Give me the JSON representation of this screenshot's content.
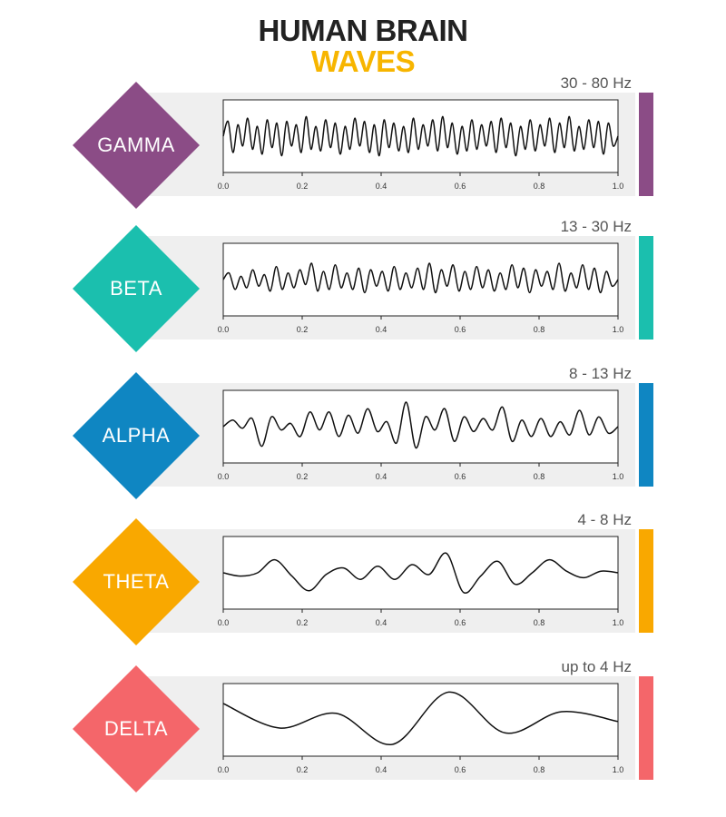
{
  "header": {
    "title": "HUMAN BRAIN",
    "subtitle": "WAVES",
    "subtitle_color": "#f7b500"
  },
  "x_tick_labels": [
    "0.0",
    "0.2",
    "0.4",
    "0.6",
    "0.8",
    "1.0"
  ],
  "bands": [
    {
      "name": "GAMMA",
      "frequency": "30 - 80 Hz",
      "color": "#8b4c86"
    },
    {
      "name": "BETA",
      "frequency": "13 - 30 Hz",
      "color": "#1bbfae"
    },
    {
      "name": "ALPHA",
      "frequency": "8 - 13 Hz",
      "color": "#0f86c2"
    },
    {
      "name": "THETA",
      "frequency": "4 - 8 Hz",
      "color": "#f9a800"
    },
    {
      "name": "DELTA",
      "frequency": "up to 4  Hz",
      "color": "#f4666a"
    }
  ],
  "chart_data": [
    {
      "type": "line",
      "title": "GAMMA",
      "xlim": [
        0.0,
        1.0
      ],
      "x_ticks": [
        0.0,
        0.2,
        0.4,
        0.6,
        0.8,
        1.0
      ],
      "series": [
        {
          "values": [
            0.0,
            0.45,
            -0.5,
            0.35,
            -0.3,
            0.55,
            -0.4,
            0.3,
            -0.55,
            0.5,
            -0.35,
            0.4,
            -0.6,
            0.45,
            -0.3,
            0.35,
            -0.5,
            0.6,
            -0.4,
            0.3,
            -0.45,
            0.5,
            -0.35,
            0.4,
            -0.55,
            0.3,
            -0.4,
            0.55,
            -0.3,
            0.45,
            -0.5,
            0.35,
            -0.6,
            0.5,
            -0.35,
            0.4,
            -0.45,
            0.3,
            -0.5,
            0.55,
            -0.4,
            0.35,
            -0.3,
            0.5,
            -0.45,
            0.6,
            -0.35,
            0.4,
            -0.55,
            0.3,
            -0.45,
            0.5,
            -0.4,
            0.35,
            -0.3,
            0.45,
            -0.5,
            0.55,
            -0.35,
            0.4,
            -0.6,
            0.3,
            -0.4,
            0.5,
            -0.45,
            0.35,
            -0.3,
            0.55,
            -0.5,
            0.4,
            -0.35,
            0.6,
            -0.45,
            0.3,
            -0.4,
            0.5,
            -0.35,
            0.45,
            -0.55,
            0.4,
            -0.3,
            0.0
          ]
        }
      ]
    },
    {
      "type": "line",
      "title": "BETA",
      "xlim": [
        0.0,
        1.0
      ],
      "x_ticks": [
        0.0,
        0.2,
        0.4,
        0.6,
        0.8,
        1.0
      ],
      "series": [
        {
          "values": [
            0.0,
            0.2,
            -0.3,
            0.1,
            -0.25,
            0.3,
            -0.2,
            0.15,
            -0.35,
            0.4,
            -0.3,
            0.2,
            -0.25,
            0.3,
            -0.15,
            0.5,
            -0.35,
            0.25,
            -0.3,
            0.45,
            -0.25,
            0.2,
            -0.3,
            0.35,
            -0.4,
            0.3,
            -0.2,
            0.25,
            -0.35,
            0.4,
            -0.3,
            0.2,
            -0.25,
            0.35,
            -0.3,
            0.5,
            -0.4,
            0.3,
            -0.2,
            0.45,
            -0.35,
            0.25,
            -0.3,
            0.4,
            -0.25,
            0.3,
            -0.35,
            0.2,
            -0.3,
            0.45,
            -0.25,
            0.35,
            -0.4,
            0.3,
            -0.2,
            0.25,
            -0.3,
            0.5,
            -0.35,
            0.2,
            -0.25,
            0.45,
            -0.3,
            0.35,
            -0.4,
            0.25,
            -0.2,
            0.0
          ]
        }
      ]
    },
    {
      "type": "line",
      "title": "ALPHA",
      "xlim": [
        0.0,
        1.0
      ],
      "x_ticks": [
        0.0,
        0.2,
        0.4,
        0.6,
        0.8,
        1.0
      ],
      "series": [
        {
          "values": [
            0.0,
            0.2,
            -0.05,
            0.25,
            -0.6,
            0.3,
            -0.1,
            0.1,
            -0.3,
            0.45,
            -0.1,
            0.45,
            -0.3,
            0.35,
            -0.2,
            0.55,
            -0.15,
            0.15,
            -0.5,
            0.75,
            -0.65,
            0.3,
            -0.1,
            0.55,
            -0.45,
            0.3,
            -0.15,
            0.25,
            -0.1,
            0.6,
            -0.45,
            0.2,
            -0.3,
            0.25,
            -0.3,
            0.15,
            -0.25,
            0.5,
            -0.25,
            0.3,
            -0.2,
            0.0
          ]
        }
      ]
    },
    {
      "type": "line",
      "title": "THETA",
      "xlim": [
        0.0,
        1.0
      ],
      "x_ticks": [
        0.0,
        0.2,
        0.4,
        0.6,
        0.8,
        1.0
      ],
      "series": [
        {
          "values": [
            0.0,
            -0.1,
            0.0,
            0.4,
            -0.1,
            -0.55,
            -0.05,
            0.15,
            -0.2,
            0.2,
            -0.2,
            0.25,
            -0.05,
            0.6,
            -0.6,
            -0.1,
            0.35,
            -0.35,
            0.0,
            0.4,
            0.05,
            -0.15,
            0.05,
            0.0
          ]
        }
      ]
    },
    {
      "type": "line",
      "title": "DELTA",
      "xlim": [
        0.0,
        1.0
      ],
      "x_ticks": [
        0.0,
        0.2,
        0.4,
        0.6,
        0.8,
        1.0
      ],
      "series": [
        {
          "values": [
            0.5,
            -0.25,
            0.2,
            -0.75,
            0.85,
            -0.4,
            0.25,
            -0.05
          ]
        }
      ]
    }
  ]
}
